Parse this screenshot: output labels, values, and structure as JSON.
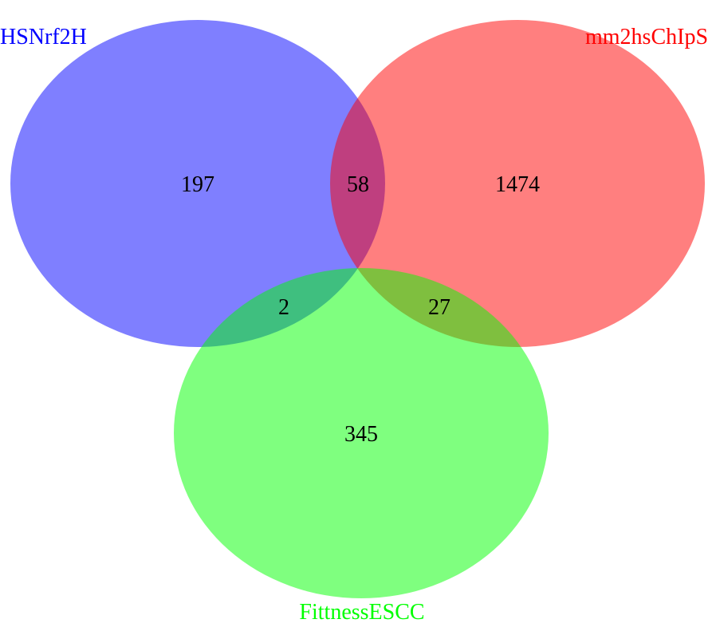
{
  "sets": {
    "left": {
      "label": "HSNrf2H",
      "color": "#0000ff",
      "fill": "#0000ff"
    },
    "right": {
      "label": "mm2hsChIpS",
      "color": "#ff0000",
      "fill": "#ff0000"
    },
    "bottom": {
      "label": "FittnessESCC",
      "color": "#00ff00",
      "fill": "#00ff00"
    }
  },
  "fill_opacity": 0.5,
  "regions": {
    "left_only": "197",
    "left_right": "58",
    "right_only": "1474",
    "left_bottom": "2",
    "right_bottom": "27",
    "bottom_only": "345"
  }
}
